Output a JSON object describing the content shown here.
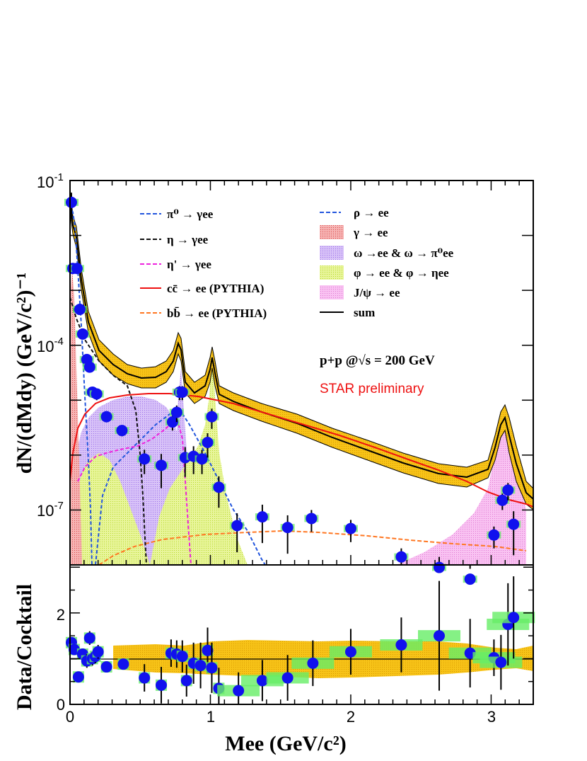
{
  "chart_data": [
    {
      "type": "line",
      "panel": "top",
      "ylabel": "dN/(dMdy) (GeV/c²)⁻¹",
      "xlabel": "",
      "yscale": "log",
      "ylim": [
        1e-08,
        0.1
      ],
      "xlim": [
        0,
        3.3
      ],
      "ytick_labels": [
        {
          "base": "10",
          "exp": "-1",
          "value": 0.1
        },
        {
          "base": "10",
          "exp": "-4",
          "value": 0.0001
        },
        {
          "base": "10",
          "exp": "-7",
          "value": 1e-07
        }
      ],
      "legend_left": [
        {
          "label": "π⁰ → γee",
          "color": "#2255dd",
          "style": "dashed"
        },
        {
          "label": "η → γee",
          "color": "#111111",
          "style": "dashed"
        },
        {
          "label": "η' → γee",
          "color": "#ee22dd",
          "style": "dashed"
        },
        {
          "label": "cc̄ → ee (PYTHIA)",
          "color": "#ee1111",
          "style": "solid"
        },
        {
          "label": "bb̄ → ee (PYTHIA)",
          "color": "#ff7722",
          "style": "dashed"
        }
      ],
      "legend_right": [
        {
          "label": "ρ → ee",
          "color": "#2255dd",
          "style": "dashed"
        },
        {
          "label": "γ → ee",
          "color": "#f08a8a",
          "style": "fill"
        },
        {
          "label": "ω →ee & ω → π⁰ee",
          "color": "#c9a8f5",
          "style": "fill"
        },
        {
          "label": "φ → ee & φ → ηee",
          "color": "#dff27a",
          "style": "fill"
        },
        {
          "label": "J/ψ → ee",
          "color": "#f7a8ee",
          "style": "fill"
        },
        {
          "label": "sum",
          "color": "#000000",
          "style": "solid"
        }
      ],
      "annotations": [
        {
          "text": "p+p @√s = 200 GeV",
          "color": "#000000"
        },
        {
          "text": "STAR preliminary",
          "color": "#ee1111"
        }
      ],
      "series": [
        {
          "name": "data",
          "type": "scatter",
          "color": "#1111ee",
          "points": [
            [
              0.01,
              0.04,
              0.02
            ],
            [
              0.02,
              0.0025,
              0.0005
            ],
            [
              0.05,
              0.0025,
              0.0005
            ],
            [
              0.07,
              0.00045,
              8e-05
            ],
            [
              0.09,
              0.00016,
              3e-05
            ],
            [
              0.12,
              5.5e-05,
              1e-05
            ],
            [
              0.14,
              4e-05,
              8e-06
            ],
            [
              0.16,
              1.4e-05,
              3e-06
            ],
            [
              0.19,
              1.3e-05,
              3e-06
            ],
            [
              0.26,
              5e-06,
              1e-06
            ],
            [
              0.37,
              2.8e-06,
              6e-07
            ],
            [
              0.53,
              8.5e-07,
              4e-07
            ],
            [
              0.65,
              6.5e-07,
              4e-07
            ],
            [
              0.73,
              4e-06,
              1.2e-06
            ],
            [
              0.76,
              6e-06,
              2e-06
            ],
            [
              0.78,
              1.4e-05,
              4e-06
            ],
            [
              0.8,
              1.4e-05,
              4e-06
            ],
            [
              0.82,
              9e-07,
              5e-07
            ],
            [
              0.88,
              9.5e-07,
              5e-07
            ],
            [
              0.94,
              8.5e-07,
              4e-07
            ],
            [
              0.98,
              1.7e-06,
              8e-07
            ],
            [
              1.01,
              5e-06,
              2e-06
            ],
            [
              1.06,
              2.6e-07,
              1.5e-07
            ],
            [
              1.19,
              5.2e-08,
              3.5e-08
            ],
            [
              1.37,
              7.5e-08,
              5e-08
            ],
            [
              1.55,
              4.8e-08,
              3.2e-08
            ],
            [
              1.72,
              7e-08,
              3e-08
            ],
            [
              2.0,
              4.6e-08,
              2e-08
            ],
            [
              2.36,
              1.4e-08,
              6e-09
            ],
            [
              2.63,
              9e-09,
              5e-09
            ],
            [
              2.85,
              5.5e-09,
              3e-09
            ],
            [
              3.02,
              3.5e-08,
              1.5e-08
            ],
            [
              3.08,
              1.5e-07,
              5e-08
            ],
            [
              3.12,
              2.3e-07,
              8e-08
            ],
            [
              3.16,
              5.5e-08,
              4e-08
            ]
          ]
        },
        {
          "name": "sum",
          "color": "#000000"
        },
        {
          "name": "cc̄ → ee (PYTHIA)",
          "color": "#ee1111"
        },
        {
          "name": "bb̄ → ee (PYTHIA)",
          "color": "#ff7722"
        }
      ]
    },
    {
      "type": "scatter",
      "panel": "bottom",
      "xlabel": "Mee (GeV/c²)",
      "ylabel": "Data/Cocktail",
      "xlim": [
        0,
        3.3
      ],
      "ylim": [
        0,
        3.05
      ],
      "xtick_labels": [
        "0",
        "1",
        "2",
        "3"
      ],
      "ytick_labels": [
        "0",
        "2"
      ],
      "reference_line": 1,
      "points": [
        [
          0.01,
          1.35,
          0.12
        ],
        [
          0.03,
          1.2,
          0.12
        ],
        [
          0.06,
          0.6,
          0.08
        ],
        [
          0.09,
          1.1,
          0.12
        ],
        [
          0.12,
          0.95,
          0.15
        ],
        [
          0.14,
          1.45,
          0.15
        ],
        [
          0.16,
          1.0,
          0.15
        ],
        [
          0.18,
          1.05,
          0.15
        ],
        [
          0.2,
          1.15,
          0.15
        ],
        [
          0.26,
          0.82,
          0.12
        ],
        [
          0.38,
          0.88,
          0.12
        ],
        [
          0.53,
          0.58,
          0.3
        ],
        [
          0.65,
          0.42,
          0.4
        ],
        [
          0.72,
          1.12,
          0.3
        ],
        [
          0.76,
          1.1,
          0.3
        ],
        [
          0.8,
          1.05,
          0.35
        ],
        [
          0.83,
          0.52,
          0.35
        ],
        [
          0.88,
          0.9,
          0.45
        ],
        [
          0.93,
          0.85,
          0.5
        ],
        [
          0.98,
          1.18,
          0.5
        ],
        [
          1.01,
          0.8,
          0.55
        ],
        [
          1.06,
          0.35,
          0.45
        ],
        [
          1.2,
          0.3,
          0.4
        ],
        [
          1.37,
          0.52,
          0.45
        ],
        [
          1.55,
          0.58,
          0.5
        ],
        [
          1.73,
          0.9,
          0.5
        ],
        [
          2.0,
          1.15,
          0.5
        ],
        [
          2.36,
          1.3,
          0.6
        ],
        [
          2.63,
          1.5,
          1.2
        ],
        [
          2.85,
          1.12,
          0.75
        ],
        [
          3.02,
          1.02,
          0.4
        ],
        [
          3.07,
          0.92,
          0.6
        ],
        [
          3.12,
          1.75,
          0.9
        ],
        [
          3.16,
          1.9,
          0.9
        ]
      ]
    }
  ]
}
